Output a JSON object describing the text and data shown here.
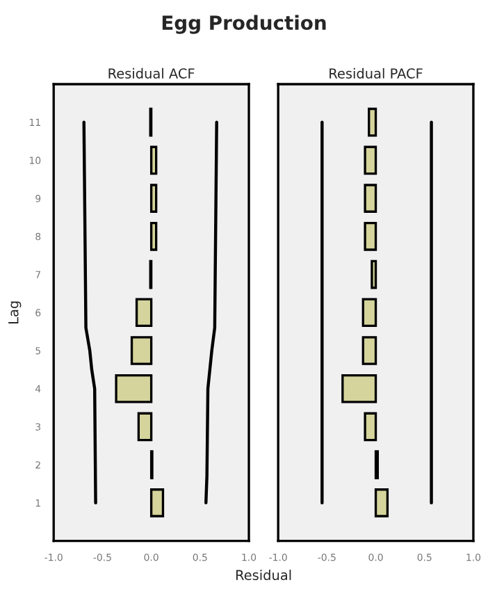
{
  "chart_data": [
    {
      "type": "bar",
      "orientation": "horizontal",
      "title": "Egg Production",
      "subtitle": "Residual ACF",
      "xlabel": "Residual",
      "ylabel": "Lag",
      "x": [
        1,
        2,
        3,
        4,
        5,
        6,
        7,
        8,
        9,
        10,
        11
      ],
      "series": [
        {
          "color": "#d4d49c",
          "values": [
            0.12,
            0.01,
            -0.13,
            -0.36,
            -0.2,
            -0.15,
            -0.01,
            0.05,
            0.05,
            0.05,
            -0.01
          ]
        },
        {
          "type": "line",
          "color": "#000000",
          "x": [
            1,
            1.7,
            4,
            5,
            5.6,
            11
          ],
          "values": [
            0.56,
            0.57,
            0.58,
            0.62,
            0.65,
            0.67
          ]
        },
        {
          "type": "line",
          "color": "#000000",
          "x": [
            1,
            4,
            4.5,
            5,
            5.6,
            11
          ],
          "values": [
            -0.57,
            -0.58,
            -0.61,
            -0.63,
            -0.67,
            -0.69
          ]
        }
      ],
      "xlim": [
        -1.0,
        1.0
      ],
      "xticks": [
        {
          "value": -1.0,
          "label": "-1.0"
        },
        {
          "value": -0.5,
          "label": "-0.5"
        },
        {
          "value": 0,
          "label": "0.0"
        },
        {
          "value": 0.5,
          "label": "0.5"
        },
        {
          "value": 1.0,
          "label": "1.0"
        }
      ],
      "ylim": [
        0,
        12
      ],
      "yticks": [
        1,
        2,
        3,
        4,
        5,
        6,
        7,
        8,
        9,
        10,
        11
      ],
      "grid": false
    },
    {
      "type": "bar",
      "orientation": "horizontal",
      "subtitle": "Residual PACF",
      "x": [
        1,
        2,
        3,
        4,
        5,
        6,
        7,
        8,
        9,
        10,
        11
      ],
      "series": [
        {
          "color": "#d4d49c",
          "values": [
            0.12,
            0.02,
            -0.11,
            -0.34,
            -0.13,
            -0.13,
            -0.04,
            -0.11,
            -0.11,
            -0.11,
            -0.07
          ]
        },
        {
          "type": "line",
          "color": "#000000",
          "x": [
            1,
            11
          ],
          "values": [
            0.57,
            0.57
          ]
        },
        {
          "type": "line",
          "color": "#000000",
          "x": [
            1,
            11
          ],
          "values": [
            -0.55,
            -0.55
          ]
        }
      ],
      "xlim": [
        -1.0,
        1.0
      ],
      "xticks": [
        {
          "value": -1.0,
          "label": "-1.0"
        },
        {
          "value": -0.5,
          "label": "-0.5"
        },
        {
          "value": 0,
          "label": "0.0"
        },
        {
          "value": 0.5,
          "label": "0.5"
        },
        {
          "value": 1.0,
          "label": "1.0"
        }
      ],
      "ylim": [
        0,
        12
      ],
      "tick_labels": "x",
      "grid": false
    }
  ]
}
